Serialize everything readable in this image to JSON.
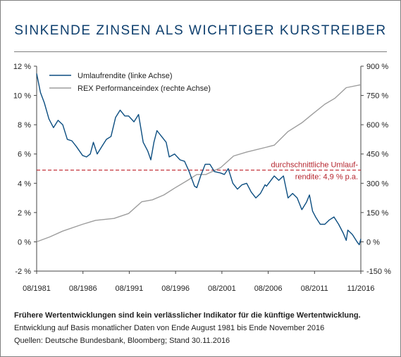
{
  "title": "SINKENDE ZINSEN ALS WICHTIGER KURSTREIBER",
  "footnotes": {
    "disclaimer": "Frühere Wertentwicklungen sind kein verlässlicher Indikator für die künftige Wertentwicklung.",
    "basis": "Entwicklung auf Basis monatlicher Daten von Ende August 1981 bis Ende November 2016",
    "sources": "Quellen: Deutsche Bundesbank, Bloomberg; Stand 30.11.2016"
  },
  "colors": {
    "yield_line": "#0b4d80",
    "rex_line": "#9d9d9d",
    "average_line": "#c0252f",
    "average_text": "#b5252e",
    "title": "#0e3f6e"
  },
  "chart_data": {
    "type": "line",
    "x_ticks": [
      "08/1981",
      "08/1986",
      "08/1991",
      "08/1996",
      "08/2001",
      "08/2006",
      "08/2011",
      "11/2016"
    ],
    "left_axis": {
      "ticks": [
        "12 %",
        "10 %",
        "8 %",
        "6 %",
        "4 %",
        "2 %",
        "0 %",
        "-2 %"
      ],
      "range": [
        -2,
        12
      ],
      "unit": "%"
    },
    "right_axis": {
      "ticks": [
        "900 %",
        "750 %",
        "600 %",
        "450 %",
        "300 %",
        "150 %",
        "0 %",
        "-150 %"
      ],
      "range": [
        -150,
        900
      ],
      "unit": "%"
    },
    "grid": false,
    "legend_position": "top-left",
    "average_line": {
      "value": 4.9,
      "label_line1": "durchschnittliche Umlauf-",
      "label_line2": "rendite: 4,9 % p.a."
    },
    "series": [
      {
        "name": "Umlaufrendite (linke Achse)",
        "axis": "left",
        "points": [
          [
            "1981-08",
            11.5
          ],
          [
            "1982-01",
            10.2
          ],
          [
            "1982-06",
            9.5
          ],
          [
            "1982-12",
            8.4
          ],
          [
            "1983-06",
            7.8
          ],
          [
            "1983-12",
            8.3
          ],
          [
            "1984-06",
            8.0
          ],
          [
            "1984-12",
            7.0
          ],
          [
            "1985-06",
            6.9
          ],
          [
            "1985-12",
            6.5
          ],
          [
            "1986-08",
            5.9
          ],
          [
            "1987-01",
            5.8
          ],
          [
            "1987-06",
            6.0
          ],
          [
            "1987-10",
            6.8
          ],
          [
            "1988-03",
            6.0
          ],
          [
            "1988-09",
            6.5
          ],
          [
            "1989-03",
            7.0
          ],
          [
            "1989-09",
            7.2
          ],
          [
            "1990-03",
            8.5
          ],
          [
            "1990-09",
            9.0
          ],
          [
            "1991-03",
            8.6
          ],
          [
            "1991-08",
            8.6
          ],
          [
            "1992-03",
            8.2
          ],
          [
            "1992-09",
            8.7
          ],
          [
            "1993-03",
            6.8
          ],
          [
            "1993-09",
            6.2
          ],
          [
            "1994-01",
            5.6
          ],
          [
            "1994-05",
            6.8
          ],
          [
            "1994-09",
            7.6
          ],
          [
            "1995-03",
            7.2
          ],
          [
            "1995-09",
            6.8
          ],
          [
            "1996-01",
            5.8
          ],
          [
            "1996-08",
            6.0
          ],
          [
            "1997-03",
            5.6
          ],
          [
            "1997-09",
            5.5
          ],
          [
            "1998-03",
            4.8
          ],
          [
            "1998-10",
            3.8
          ],
          [
            "1999-01",
            3.7
          ],
          [
            "1999-06",
            4.5
          ],
          [
            "1999-12",
            5.3
          ],
          [
            "2000-06",
            5.3
          ],
          [
            "2000-12",
            4.8
          ],
          [
            "2001-08",
            4.7
          ],
          [
            "2002-01",
            4.6
          ],
          [
            "2002-06",
            5.0
          ],
          [
            "2002-12",
            4.0
          ],
          [
            "2003-06",
            3.6
          ],
          [
            "2003-12",
            3.9
          ],
          [
            "2004-06",
            4.0
          ],
          [
            "2004-12",
            3.4
          ],
          [
            "2005-06",
            3.0
          ],
          [
            "2005-12",
            3.3
          ],
          [
            "2006-06",
            3.9
          ],
          [
            "2006-08",
            3.8
          ],
          [
            "2007-06",
            4.5
          ],
          [
            "2007-12",
            4.2
          ],
          [
            "2008-06",
            4.5
          ],
          [
            "2008-12",
            3.0
          ],
          [
            "2009-06",
            3.3
          ],
          [
            "2009-12",
            3.0
          ],
          [
            "2010-06",
            2.2
          ],
          [
            "2010-12",
            2.7
          ],
          [
            "2011-04",
            3.2
          ],
          [
            "2011-08",
            2.1
          ],
          [
            "2011-12",
            1.7
          ],
          [
            "2012-06",
            1.2
          ],
          [
            "2012-12",
            1.2
          ],
          [
            "2013-06",
            1.5
          ],
          [
            "2013-12",
            1.7
          ],
          [
            "2014-06",
            1.2
          ],
          [
            "2014-12",
            0.6
          ],
          [
            "2015-04",
            0.1
          ],
          [
            "2015-06",
            0.8
          ],
          [
            "2015-12",
            0.5
          ],
          [
            "2016-06",
            0.0
          ],
          [
            "2016-09",
            -0.2
          ],
          [
            "2016-11",
            0.2
          ]
        ]
      },
      {
        "name": "REX Performanceindex (rechte Achse)",
        "axis": "right",
        "points": [
          [
            "1981-08",
            0
          ],
          [
            "1983-01",
            25
          ],
          [
            "1984-06",
            55
          ],
          [
            "1986-08",
            90
          ],
          [
            "1988-01",
            110
          ],
          [
            "1990-01",
            120
          ],
          [
            "1991-08",
            145
          ],
          [
            "1993-01",
            205
          ],
          [
            "1994-03",
            215
          ],
          [
            "1995-06",
            240
          ],
          [
            "1996-08",
            275
          ],
          [
            "1998-01",
            315
          ],
          [
            "1999-01",
            345
          ],
          [
            "2000-01",
            345
          ],
          [
            "2001-08",
            380
          ],
          [
            "2003-01",
            440
          ],
          [
            "2004-06",
            460
          ],
          [
            "2006-08",
            485
          ],
          [
            "2007-06",
            495
          ],
          [
            "2008-12",
            565
          ],
          [
            "2010-06",
            610
          ],
          [
            "2011-08",
            655
          ],
          [
            "2012-12",
            705
          ],
          [
            "2014-01",
            735
          ],
          [
            "2015-04",
            790
          ],
          [
            "2016-11",
            805
          ]
        ]
      }
    ]
  }
}
